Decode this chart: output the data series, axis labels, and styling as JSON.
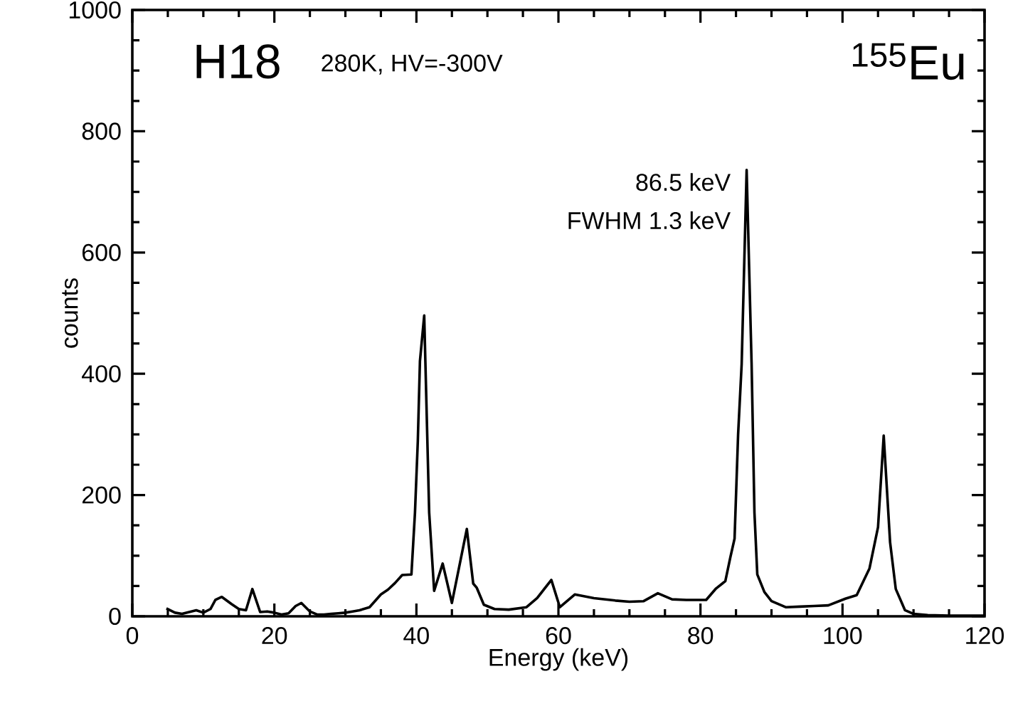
{
  "chart_data": {
    "type": "line",
    "title": "H18",
    "subtitle": "280K, HV=-300V",
    "xlabel": "Energy (keV)",
    "ylabel": "counts",
    "annotations": [
      "$^{155}$Eu",
      {
        "text": "86.5 keV",
        "x": 86.5,
        "y": 736
      },
      "FWHM 1.3 keV"
    ],
    "xlim": [
      0,
      120
    ],
    "xticks": [
      0,
      20,
      40,
      60,
      80,
      100,
      120
    ],
    "ylim": [
      0,
      1000
    ],
    "yticks": [
      0,
      200,
      400,
      600,
      800,
      1000
    ],
    "marker": "none",
    "line_style": "solid",
    "series": [
      {
        "color": "#000000",
        "x": [
          4.8,
          6,
          7,
          8,
          9,
          10,
          11,
          11.7,
          12.6,
          14,
          15,
          16,
          16.9,
          18,
          19,
          20,
          21,
          22,
          23,
          23.8,
          25,
          26,
          27,
          28,
          29,
          30,
          31,
          32,
          33.4,
          35,
          36,
          37,
          38,
          39.3,
          39.8,
          40.2,
          40.5,
          41.1,
          41.8,
          42.5,
          43.7,
          45,
          47.1,
          48,
          48.5,
          49.5,
          51,
          53,
          55.5,
          57,
          59,
          60.2,
          62.3,
          65,
          68,
          70,
          72,
          74,
          76,
          78,
          80.8,
          82.2,
          83.5,
          84.2,
          84.8,
          85.3,
          85.8,
          86.5,
          87.2,
          87.6,
          88,
          89,
          90,
          92,
          94,
          96,
          98,
          100.4,
          102,
          103.8,
          105,
          105.8,
          106.7,
          107.5,
          108.8,
          110,
          112,
          115,
          118,
          120
        ],
        "values": [
          13,
          6,
          4,
          7,
          10,
          6,
          12,
          27,
          32,
          20,
          12,
          10,
          45,
          7,
          8,
          6,
          3,
          5,
          17,
          22,
          8,
          3,
          3,
          4,
          5,
          6,
          8,
          10,
          15,
          36,
          44,
          55,
          68,
          69,
          171,
          289,
          421,
          496,
          171,
          42,
          87,
          22,
          144,
          54,
          47,
          19,
          12,
          11,
          15,
          30,
          60,
          15,
          36,
          30,
          26,
          24,
          25,
          38,
          28,
          27,
          27,
          46,
          58,
          97,
          128,
          300,
          416,
          736,
          416,
          171,
          69,
          40,
          25,
          15,
          16,
          17,
          18,
          29,
          35,
          79,
          147,
          298,
          122,
          45,
          10,
          4,
          2,
          1,
          1,
          1
        ]
      }
    ]
  }
}
